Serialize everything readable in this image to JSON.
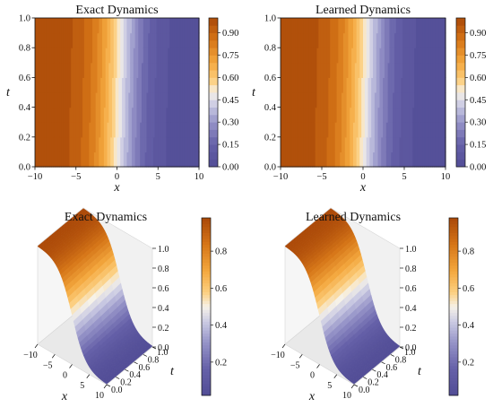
{
  "chart_data": [
    {
      "type": "heatmap",
      "title": "Exact Dynamics",
      "xlabel": "x",
      "ylabel": "t",
      "xlim": [
        -10,
        10
      ],
      "ylim": [
        0,
        1.0
      ],
      "x_ticks": [
        "−10",
        "−5",
        "0",
        "5",
        "10"
      ],
      "y_ticks": [
        "0.0",
        "0.2",
        "0.4",
        "0.6",
        "0.8",
        "1.0"
      ],
      "colorbar_ticks": [
        "0.00",
        "0.15",
        "0.30",
        "0.45",
        "0.60",
        "0.75",
        "0.90"
      ],
      "colorbar_range": [
        0,
        1.0
      ],
      "contour_levels": 20,
      "field": "u(x,t) = 0.5*(1 - tanh((x - 0.5*t)/4))"
    },
    {
      "type": "heatmap",
      "title": "Learned Dynamics",
      "xlabel": "x",
      "ylabel": "t",
      "xlim": [
        -10,
        10
      ],
      "ylim": [
        0,
        1.0
      ],
      "x_ticks": [
        "−10",
        "−5",
        "0",
        "5",
        "10"
      ],
      "y_ticks": [
        "0.0",
        "0.2",
        "0.4",
        "0.6",
        "0.8",
        "1.0"
      ],
      "colorbar_ticks": [
        "0.00",
        "0.15",
        "0.30",
        "0.45",
        "0.60",
        "0.75",
        "0.90"
      ],
      "colorbar_range": [
        0,
        1.0
      ],
      "contour_levels": 20,
      "field": "u(x,t) = 0.5*(1 - tanh((x - 0.5*t)/4))"
    },
    {
      "type": "surface",
      "title": "Exact Dynamics",
      "xlabel": "x",
      "ylabel": "t",
      "x_ticks": [
        "−10",
        "−5",
        "0",
        "5",
        "10"
      ],
      "y_ticks": [
        "0.0",
        "0.2",
        "0.4",
        "0.6",
        "0.8",
        "1.0"
      ],
      "z_ticks": [
        "0.0",
        "0.2",
        "0.4",
        "0.6",
        "0.8",
        "1.0"
      ],
      "colorbar_ticks": [
        "0.2",
        "0.4",
        "0.6",
        "0.8"
      ],
      "colorbar_range": [
        0.02,
        0.98
      ]
    },
    {
      "type": "surface",
      "title": "Learned Dynamics",
      "xlabel": "x",
      "ylabel": "t",
      "x_ticks": [
        "−10",
        "−5",
        "0",
        "5",
        "10"
      ],
      "y_ticks": [
        "0.0",
        "0.2",
        "0.4",
        "0.6",
        "0.8",
        "1.0"
      ],
      "z_ticks": [
        "0.0",
        "0.2",
        "0.4",
        "0.6",
        "0.8",
        "1.0"
      ],
      "colorbar_ticks": [
        "0.2",
        "0.4",
        "0.6",
        "0.8"
      ],
      "colorbar_range": [
        0.02,
        0.98
      ]
    }
  ]
}
